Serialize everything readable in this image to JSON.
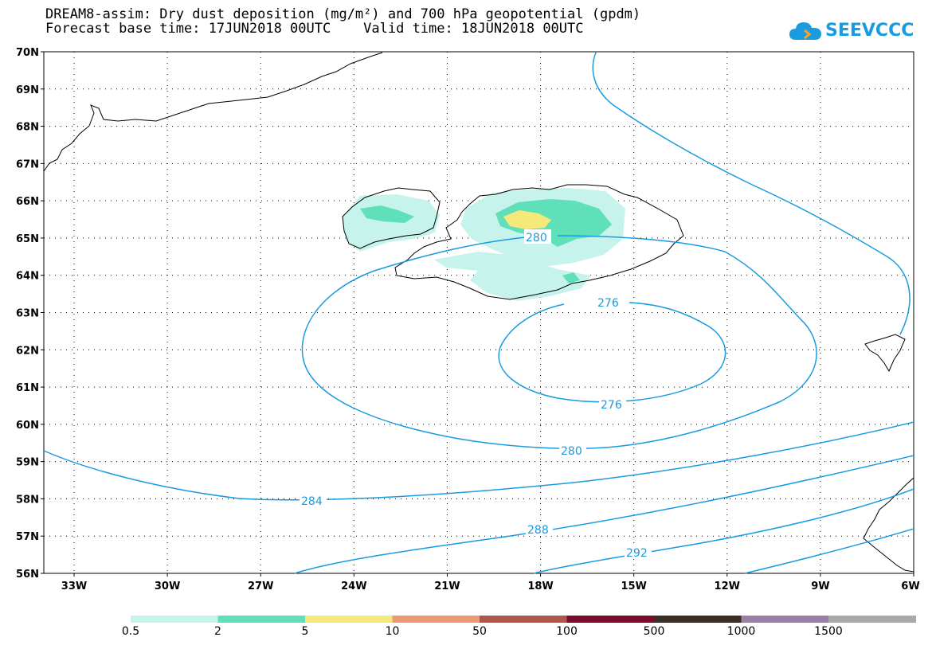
{
  "title": {
    "line1": "DREAM8-assim: Dry dust deposition (mg/m²) and 700 hPa geopotential (gpdm)",
    "line2": "Forecast base time: 17JUN2018 00UTC    Valid time: 18JUN2018 00UTC"
  },
  "logo": {
    "text": "SEEVCCC",
    "icon": "cloud-icon",
    "color": "#1a9be0"
  },
  "map": {
    "lat_labels": [
      "70N",
      "69N",
      "68N",
      "67N",
      "66N",
      "65N",
      "64N",
      "63N",
      "62N",
      "61N",
      "60N",
      "59N",
      "58N",
      "57N",
      "56N"
    ],
    "lon_labels": [
      "33W",
      "30W",
      "27W",
      "24W",
      "21W",
      "18W",
      "15W",
      "12W",
      "9W",
      "6W"
    ],
    "contour_color": "#1a9be0",
    "contour_labels": [
      "280",
      "276",
      "276",
      "280",
      "284",
      "288",
      "292"
    ]
  },
  "legend": {
    "thresholds": [
      "0.5",
      "2",
      "5",
      "10",
      "50",
      "100",
      "500",
      "1000",
      "1500"
    ],
    "colors": [
      "#c6f3ec",
      "#5fe0b8",
      "#f5e97a",
      "#ec9a72",
      "#b0574b",
      "#7a0c2a",
      "#3a2e26",
      "#9b7fa4",
      "#a9a9a9"
    ]
  }
}
